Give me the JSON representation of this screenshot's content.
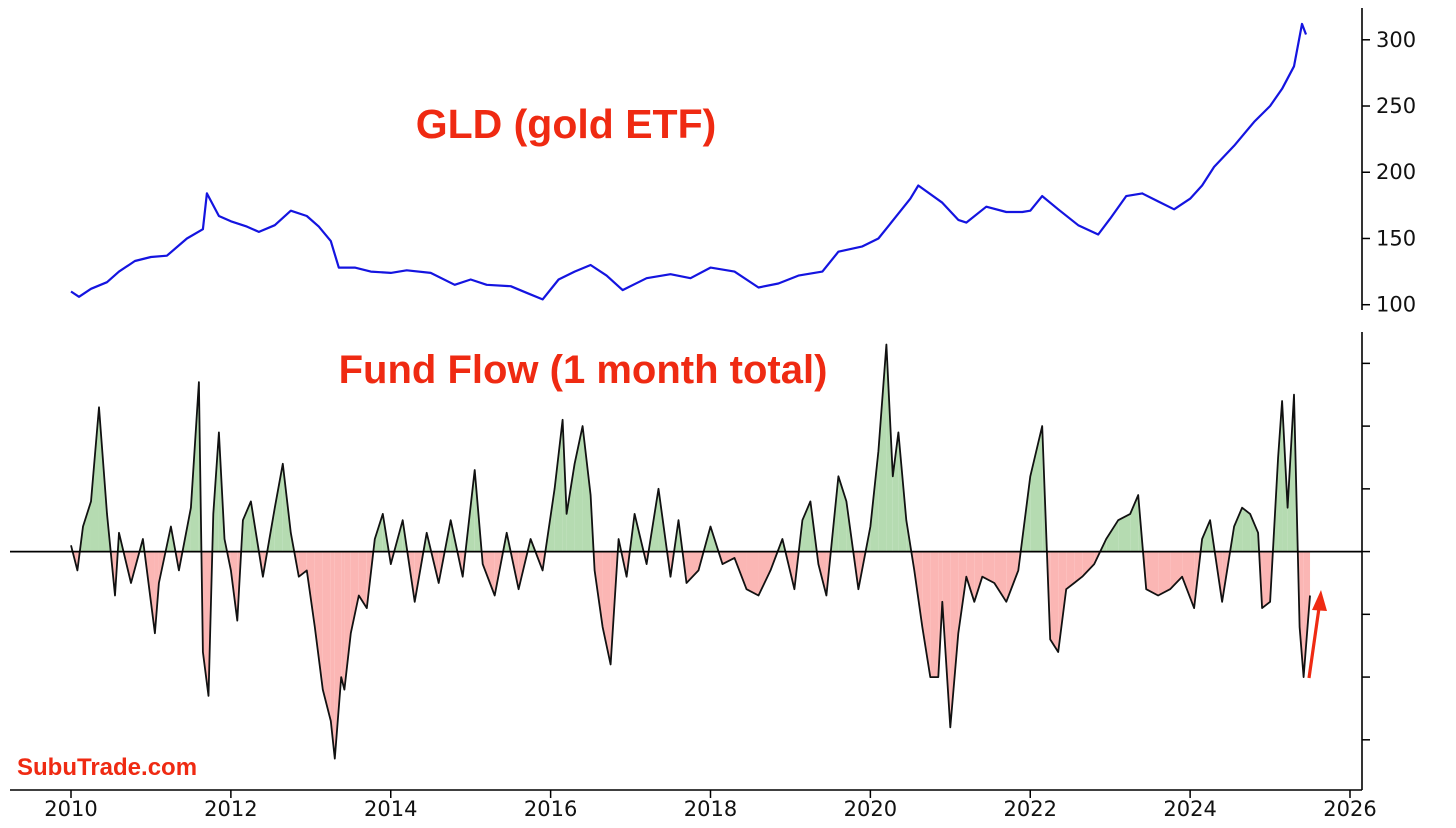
{
  "brand": "SubuTrade.com",
  "colors": {
    "price_line": "#1414e0",
    "flow_line": "#111111",
    "inflow_fill": "#b5dbb1",
    "outflow_fill": "#fbb6b4",
    "title": "#ef2a12",
    "arrow": "#ef2a12"
  },
  "chart_data": [
    {
      "type": "line",
      "title": "GLD (gold ETF)",
      "xlabel": "",
      "ylabel": "",
      "y_axis_side": "right",
      "xlim": [
        2010,
        2026
      ],
      "ylim": [
        96,
        324
      ],
      "yticks": [
        100,
        150,
        200,
        250,
        300
      ],
      "ytick_labels": [
        "100",
        "150",
        "200",
        "250",
        "300"
      ],
      "series": [
        {
          "x": [
            2010.0,
            2010.1,
            2010.25,
            2010.45,
            2010.6,
            2010.8,
            2011.0,
            2011.2,
            2011.45,
            2011.65,
            2011.7,
            2011.85,
            2012.0,
            2012.2,
            2012.35,
            2012.55,
            2012.75,
            2012.95,
            2013.1,
            2013.25,
            2013.35,
            2013.55,
            2013.75,
            2014.0,
            2014.2,
            2014.5,
            2014.8,
            2015.0,
            2015.2,
            2015.5,
            2015.7,
            2015.9,
            2016.1,
            2016.3,
            2016.5,
            2016.7,
            2016.9,
            2017.2,
            2017.5,
            2017.75,
            2018.0,
            2018.3,
            2018.6,
            2018.85,
            2019.1,
            2019.4,
            2019.6,
            2019.9,
            2020.1,
            2020.3,
            2020.5,
            2020.6,
            2020.9,
            2021.1,
            2021.2,
            2021.45,
            2021.7,
            2021.9,
            2022.0,
            2022.15,
            2022.35,
            2022.6,
            2022.85,
            2023.0,
            2023.2,
            2023.4,
            2023.6,
            2023.8,
            2024.0,
            2024.15,
            2024.3,
            2024.55,
            2024.8,
            2025.0,
            2025.15,
            2025.3,
            2025.4,
            2025.45
          ],
          "values": [
            110,
            106,
            112,
            117,
            125,
            133,
            136,
            137,
            150,
            157,
            184,
            167,
            163,
            159,
            155,
            160,
            171,
            167,
            159,
            148,
            128,
            128,
            125,
            124,
            126,
            124,
            115,
            119,
            115,
            114,
            109,
            104,
            119,
            125,
            130,
            122,
            111,
            120,
            123,
            120,
            128,
            125,
            113,
            116,
            122,
            125,
            140,
            144,
            150,
            165,
            180,
            190,
            177,
            164,
            162,
            174,
            170,
            170,
            171,
            182,
            172,
            160,
            153,
            165,
            182,
            184,
            178,
            172,
            180,
            190,
            204,
            220,
            238,
            250,
            263,
            280,
            312,
            304
          ]
        }
      ]
    },
    {
      "type": "area",
      "title": "Fund Flow (1 month total)",
      "xlabel": "",
      "ylabel": "",
      "y_axis_side": "right",
      "ytick_labels_shown": false,
      "xlim": [
        2010,
        2026
      ],
      "ylim": [
        -3.8,
        3.5
      ],
      "yticks": [
        -3,
        -2,
        -1,
        0,
        1,
        2,
        3
      ],
      "xticks": [
        2010,
        2012,
        2014,
        2016,
        2018,
        2020,
        2022,
        2024,
        2026
      ],
      "xtick_labels": [
        "2010",
        "2012",
        "2014",
        "2016",
        "2018",
        "2020",
        "2022",
        "2024",
        "2026"
      ],
      "baseline": 0,
      "fill_above": "inflow",
      "fill_below": "outflow",
      "series": [
        {
          "x": [
            2010.0,
            2010.08,
            2010.15,
            2010.25,
            2010.35,
            2010.45,
            2010.55,
            2010.6,
            2010.75,
            2010.9,
            2011.05,
            2011.1,
            2011.25,
            2011.35,
            2011.5,
            2011.6,
            2011.65,
            2011.72,
            2011.78,
            2011.85,
            2011.92,
            2012.0,
            2012.08,
            2012.15,
            2012.25,
            2012.4,
            2012.55,
            2012.65,
            2012.75,
            2012.85,
            2012.95,
            2013.05,
            2013.15,
            2013.25,
            2013.3,
            2013.38,
            2013.42,
            2013.5,
            2013.6,
            2013.7,
            2013.8,
            2013.9,
            2014.0,
            2014.15,
            2014.3,
            2014.45,
            2014.6,
            2014.75,
            2014.9,
            2015.05,
            2015.15,
            2015.3,
            2015.45,
            2015.6,
            2015.75,
            2015.9,
            2016.05,
            2016.15,
            2016.2,
            2016.3,
            2016.4,
            2016.5,
            2016.55,
            2016.65,
            2016.75,
            2016.85,
            2016.95,
            2017.05,
            2017.2,
            2017.35,
            2017.5,
            2017.6,
            2017.7,
            2017.85,
            2018.0,
            2018.15,
            2018.3,
            2018.45,
            2018.6,
            2018.75,
            2018.9,
            2019.05,
            2019.15,
            2019.25,
            2019.35,
            2019.45,
            2019.6,
            2019.7,
            2019.85,
            2020.0,
            2020.1,
            2020.2,
            2020.28,
            2020.35,
            2020.45,
            2020.55,
            2020.65,
            2020.75,
            2020.85,
            2020.9,
            2021.0,
            2021.1,
            2021.2,
            2021.3,
            2021.4,
            2021.55,
            2021.7,
            2021.85,
            2022.0,
            2022.15,
            2022.25,
            2022.35,
            2022.45,
            2022.55,
            2022.65,
            2022.8,
            2022.95,
            2023.1,
            2023.25,
            2023.35,
            2023.45,
            2023.6,
            2023.75,
            2023.9,
            2024.05,
            2024.15,
            2024.25,
            2024.4,
            2024.55,
            2024.65,
            2024.75,
            2024.85,
            2024.9,
            2025.0,
            2025.1,
            2025.15,
            2025.22,
            2025.3,
            2025.37,
            2025.42,
            2025.5
          ],
          "values": [
            0.1,
            -0.3,
            0.4,
            0.8,
            2.3,
            0.6,
            -0.7,
            0.3,
            -0.5,
            0.2,
            -1.3,
            -0.5,
            0.4,
            -0.3,
            0.7,
            2.7,
            -1.6,
            -2.3,
            0.6,
            1.9,
            0.2,
            -0.3,
            -1.1,
            0.5,
            0.8,
            -0.4,
            0.7,
            1.4,
            0.3,
            -0.4,
            -0.3,
            -1.2,
            -2.2,
            -2.7,
            -3.3,
            -2.0,
            -2.2,
            -1.3,
            -0.7,
            -0.9,
            0.2,
            0.6,
            -0.2,
            0.5,
            -0.8,
            0.3,
            -0.5,
            0.5,
            -0.4,
            1.3,
            -0.2,
            -0.7,
            0.3,
            -0.6,
            0.2,
            -0.3,
            1.0,
            2.1,
            0.6,
            1.4,
            2.0,
            0.9,
            -0.3,
            -1.2,
            -1.8,
            0.2,
            -0.4,
            0.6,
            -0.2,
            1.0,
            -0.4,
            0.5,
            -0.5,
            -0.3,
            0.4,
            -0.2,
            -0.1,
            -0.6,
            -0.7,
            -0.3,
            0.2,
            -0.6,
            0.5,
            0.8,
            -0.2,
            -0.7,
            1.2,
            0.8,
            -0.6,
            0.4,
            1.6,
            3.3,
            1.2,
            1.9,
            0.5,
            -0.3,
            -1.2,
            -2.0,
            -2.0,
            -0.8,
            -2.8,
            -1.3,
            -0.4,
            -0.8,
            -0.4,
            -0.5,
            -0.8,
            -0.3,
            1.2,
            2.0,
            -1.4,
            -1.6,
            -0.6,
            -0.5,
            -0.4,
            -0.2,
            0.2,
            0.5,
            0.6,
            0.9,
            -0.6,
            -0.7,
            -0.6,
            -0.4,
            -0.9,
            0.2,
            0.5,
            -0.8,
            0.4,
            0.7,
            0.6,
            0.3,
            -0.9,
            -0.8,
            1.5,
            2.4,
            0.7,
            2.5,
            -1.2,
            -2.0,
            -0.7
          ]
        }
      ]
    }
  ],
  "annotation": {
    "arrow": "up-right",
    "color": "#ef2a12"
  }
}
